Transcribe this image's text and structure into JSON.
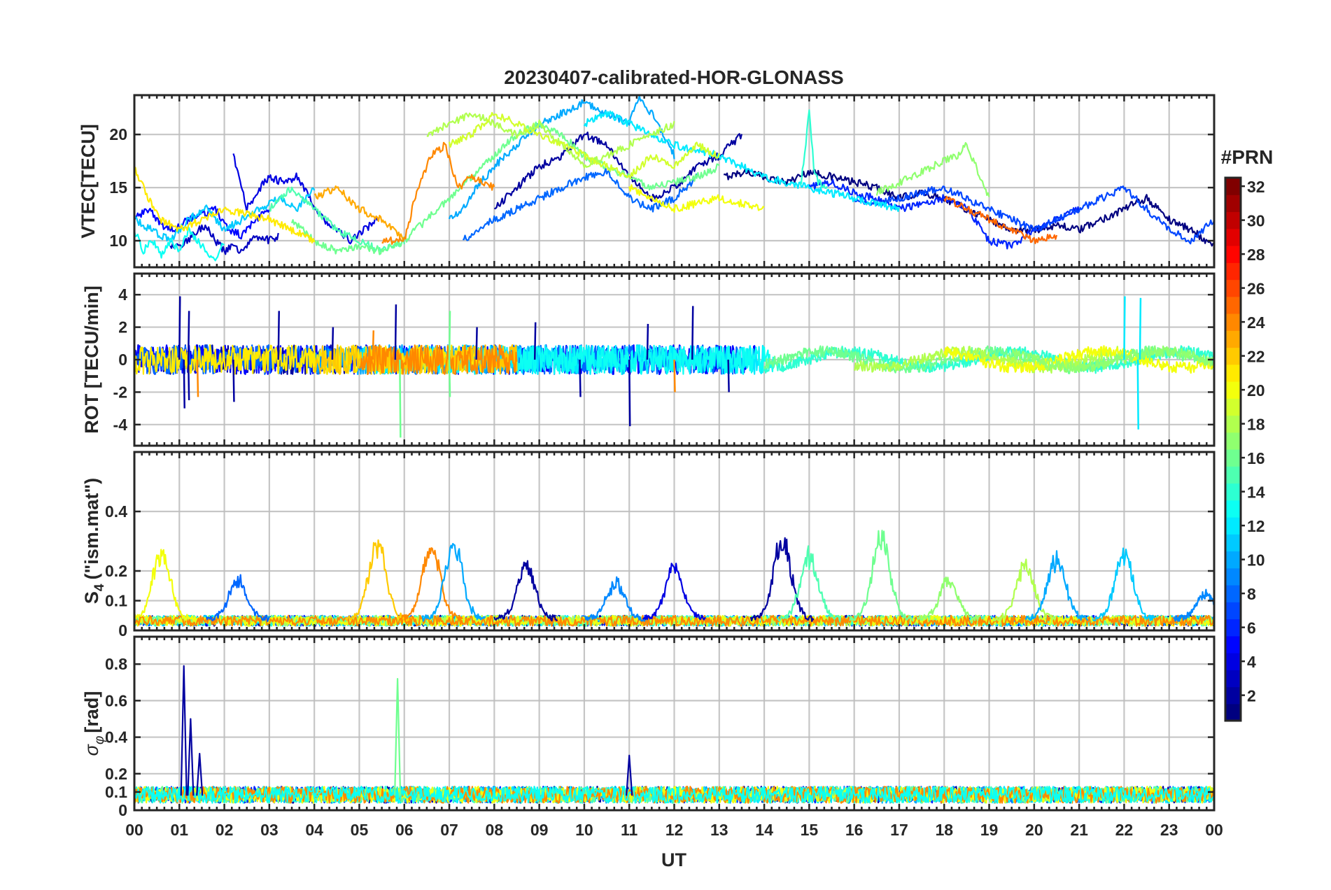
{
  "chart_data": {
    "type": "line",
    "title": "20230407-calibrated-HOR-GLONASS",
    "xlabel": "UT",
    "x_tick_labels": [
      "00",
      "01",
      "02",
      "03",
      "04",
      "05",
      "06",
      "07",
      "08",
      "09",
      "10",
      "11",
      "12",
      "13",
      "14",
      "15",
      "16",
      "17",
      "18",
      "19",
      "20",
      "21",
      "22",
      "23",
      "00"
    ],
    "xlim": [
      0,
      24
    ],
    "grid": true,
    "panels": [
      {
        "name": "vtec",
        "ylabel": "VTEC[TECU]",
        "ylim": [
          7.5,
          23.7
        ],
        "y_ticks": [
          10,
          15,
          20
        ],
        "y_tick_labels": [
          "10",
          "15",
          "20"
        ],
        "series": [
          {
            "prn": 1,
            "x": [
              13.1,
              13.6,
              14,
              14.5,
              15,
              15.5,
              16,
              16.5,
              17,
              17.5,
              18,
              18.5,
              19,
              19.5,
              20,
              20.5,
              21,
              21.5,
              22,
              22.5,
              23,
              23.5,
              24
            ],
            "y": [
              16,
              16.5,
              16,
              15.5,
              16.5,
              16,
              15.5,
              15,
              14,
              14.5,
              14,
              13,
              12,
              11,
              11,
              11.5,
              11,
              12,
              13,
              14,
              12,
              11,
              9.5
            ]
          },
          {
            "prn": 2,
            "x": [
              8,
              8.5,
              9,
              9.5,
              10,
              10.5,
              11,
              11.5,
              12,
              12.5,
              13,
              13.5
            ],
            "y": [
              13,
              15,
              17,
              18,
              20,
              19,
              16,
              14,
              15,
              17,
              18,
              20
            ]
          },
          {
            "prn": 3,
            "x": [
              0.8,
              1,
              1.2,
              1.4,
              1.6,
              1.8,
              2,
              2.2,
              2.4,
              2.6,
              2.8,
              3,
              3.2
            ],
            "y": [
              9.5,
              9.6,
              10,
              11,
              11.5,
              10,
              9,
              9.5,
              9,
              10,
              10.5,
              10,
              10.5
            ]
          },
          {
            "prn": 4,
            "x": [
              2.2,
              2.5,
              2.8,
              3,
              3.3,
              3.6,
              3.9,
              4.2,
              4.5,
              4.8,
              5.1,
              5.4
            ],
            "y": [
              18,
              13,
              15,
              16,
              15.5,
              16,
              14,
              12,
              11,
              10,
              11,
              12
            ]
          },
          {
            "prn": 5,
            "x": [
              0,
              0.3,
              0.6,
              0.9,
              1.2,
              1.5,
              1.8,
              2.1,
              2.4,
              2.7,
              3
            ],
            "y": [
              12,
              13,
              11.5,
              11,
              12,
              12.5,
              13,
              11,
              10.5,
              12,
              13
            ]
          },
          {
            "prn": 6,
            "x": [
              15,
              15.5,
              16,
              16.5,
              17,
              17.5,
              18,
              18.5,
              19,
              19.5,
              20,
              20.5,
              21
            ],
            "y": [
              15,
              15.5,
              14.5,
              14,
              13,
              13.5,
              14,
              13,
              10,
              9.5,
              11,
              12,
              13
            ]
          },
          {
            "prn": 7,
            "x": [
              16,
              16.5,
              17,
              17.5,
              18,
              18.5,
              19,
              19.5,
              20,
              20.5,
              21,
              21.5,
              22,
              22.5,
              23,
              23.5,
              24
            ],
            "y": [
              14,
              13.5,
              14,
              14.5,
              15,
              14,
              13,
              12,
              11,
              12,
              13,
              14,
              15,
              13,
              11,
              10,
              12
            ]
          },
          {
            "prn": 8,
            "x": [
              7.3,
              7.6,
              8,
              8.5,
              9,
              9.5,
              10,
              10.5,
              11,
              11.5,
              12,
              12.5
            ],
            "y": [
              10,
              11,
              12,
              13,
              14,
              15,
              16,
              16.5,
              14,
              13,
              14,
              16
            ]
          },
          {
            "prn": 10,
            "x": [
              7,
              7.3,
              7.6,
              8,
              8.5,
              9,
              9.5,
              10,
              10.5,
              11,
              11.2,
              11.5,
              12
            ],
            "y": [
              12,
              13,
              15,
              17,
              19,
              21,
              22,
              23,
              22,
              21,
              23.5,
              22,
              18
            ]
          },
          {
            "prn": 11,
            "x": [
              0,
              0.4,
              0.8,
              1.2,
              1.6,
              2,
              2.4,
              2.8,
              3.2,
              3.6,
              4
            ],
            "y": [
              12,
              11,
              10,
              12,
              13,
              11,
              12,
              13,
              14,
              13,
              15
            ]
          },
          {
            "prn": 12,
            "x": [
              10,
              10.5,
              11,
              11.5,
              12,
              12.5,
              13,
              13.5,
              14,
              14.5,
              15,
              15.5,
              16,
              16.5,
              17
            ],
            "y": [
              21,
              22,
              21,
              20,
              19,
              18.5,
              18,
              17,
              16,
              15.5,
              15,
              14.5,
              14,
              13.5,
              13
            ]
          },
          {
            "prn": 13,
            "x": [
              0,
              0.2,
              0.4,
              0.6,
              0.8,
              1,
              1.2,
              1.4,
              1.6,
              1.8,
              2
            ],
            "y": [
              11,
              9,
              10,
              8.5,
              10,
              9,
              11,
              10,
              9,
              8,
              10
            ]
          },
          {
            "prn": 14,
            "x": [
              14.8,
              14.9,
              15,
              15.1,
              15.2,
              15.4
            ],
            "y": [
              15,
              18,
              22.5,
              17,
              15.5,
              15
            ]
          },
          {
            "prn": 15,
            "x": [
              3,
              3.5,
              4,
              4.5,
              5,
              5.5,
              6
            ],
            "y": [
              13,
              15,
              13,
              11,
              10,
              9,
              10
            ]
          },
          {
            "prn": 16,
            "x": [
              3.5,
              4,
              4.5,
              5,
              5.5,
              6,
              6.5,
              7,
              7.5,
              8,
              8.5,
              9,
              9.5,
              10,
              10.5,
              11,
              11.5,
              12,
              12.5,
              13
            ],
            "y": [
              12,
              10,
              9,
              9.5,
              9,
              10,
              12,
              14,
              16,
              18,
              20,
              21,
              20,
              18,
              17,
              16,
              15,
              15.5,
              16,
              17
            ]
          },
          {
            "prn": 17,
            "x": [
              16.5,
              17,
              17.5,
              18,
              18.3,
              18.5,
              18.7,
              19
            ],
            "y": [
              14.5,
              15.5,
              16.5,
              17.5,
              18,
              19,
              17,
              14
            ]
          },
          {
            "prn": 18,
            "x": [
              6.5,
              7,
              7.5,
              8,
              8.5,
              9,
              9.5,
              10,
              10.5,
              11,
              11.5,
              12
            ],
            "y": [
              20,
              21,
              22,
              21,
              20,
              21,
              19,
              17,
              18,
              19,
              20,
              21
            ]
          },
          {
            "prn": 19,
            "x": [
              7,
              7.5,
              8,
              8.5,
              9,
              9.5,
              10,
              10.5,
              11,
              11.5,
              12,
              12.5,
              13
            ],
            "y": [
              19,
              20,
              22,
              21,
              20,
              19,
              18,
              17,
              16,
              18,
              17,
              19,
              18
            ]
          },
          {
            "prn": 20,
            "x": [
              11,
              11.5,
              12,
              12.5,
              13,
              13.5,
              14
            ],
            "y": [
              15,
              14,
              13,
              13.5,
              14,
              13.5,
              13
            ]
          },
          {
            "prn": 21,
            "x": [
              0,
              0.3,
              0.6,
              1,
              1.5,
              2,
              2.5,
              3,
              3.5,
              4
            ],
            "y": [
              17,
              14,
              12,
              11,
              12,
              13,
              12.5,
              12,
              11,
              10
            ]
          },
          {
            "prn": 23,
            "x": [
              4,
              4.5,
              5,
              5.5,
              6
            ],
            "y": [
              14,
              15,
              13,
              12,
              10
            ]
          },
          {
            "prn": 24,
            "x": [
              5.5,
              6,
              6.3,
              6.6,
              6.9,
              7.2,
              7.5,
              8
            ],
            "y": [
              10,
              10,
              15,
              18,
              19,
              15,
              16,
              15
            ]
          },
          {
            "prn": 25,
            "x": [
              18,
              18.5,
              19,
              19.5,
              20,
              20.5
            ],
            "y": [
              14,
              13,
              12,
              11,
              10,
              10.5
            ]
          }
        ]
      },
      {
        "name": "rot",
        "ylabel": "ROT [TECU/min]",
        "ylim": [
          -5.3,
          5.3
        ],
        "y_ticks": [
          -4,
          -2,
          0,
          2,
          4
        ],
        "y_tick_labels": [
          "-4",
          "-2",
          "0",
          "2",
          "4"
        ],
        "spikes": [
          {
            "prn": 2,
            "x": [
              1.0,
              1.1,
              1.2,
              1.2
            ],
            "y": [
              3.9,
              -3.0,
              3.0,
              -2.5
            ]
          },
          {
            "prn": 2,
            "x": [
              2.2,
              3.2,
              4.4,
              5.8,
              7.6,
              8.9,
              9.9,
              11.0,
              11.4,
              12.4,
              13.2
            ],
            "y": [
              -2.6,
              3.0,
              2.0,
              3.4,
              2.0,
              2.3,
              -2.3,
              -4.1,
              2.2,
              3.3,
              -2.0
            ]
          },
          {
            "prn": 12,
            "x": [
              22.0,
              22.3,
              22.35
            ],
            "y": [
              3.9,
              -4.3,
              3.8
            ]
          },
          {
            "prn": 16,
            "x": [
              5.9,
              7.0,
              7.0
            ],
            "y": [
              -4.8,
              3.0,
              -2.3
            ]
          },
          {
            "prn": 24,
            "x": [
              1.4,
              5.3,
              12.0
            ],
            "y": [
              -2.3,
              1.8,
              -2.0
            ]
          }
        ]
      },
      {
        "name": "s4",
        "ylabel_main": "S",
        "ylabel_sub": "4",
        "ylabel_rest": "(\"ism.mat\")",
        "ylim": [
          0,
          0.6
        ],
        "y_ticks": [
          0,
          0.1,
          0.2,
          0.4
        ],
        "y_tick_labels": [
          "0",
          "0.1",
          "0.2",
          "0.4"
        ],
        "peaks": [
          {
            "prn": 20,
            "center": 0.6,
            "height": 0.27
          },
          {
            "prn": 8,
            "center": 2.3,
            "height": 0.17
          },
          {
            "prn": 22,
            "center": 5.4,
            "height": 0.3
          },
          {
            "prn": 24,
            "center": 6.6,
            "height": 0.29
          },
          {
            "prn": 10,
            "center": 7.1,
            "height": 0.3
          },
          {
            "prn": 2,
            "center": 8.7,
            "height": 0.22
          },
          {
            "prn": 9,
            "center": 10.7,
            "height": 0.16
          },
          {
            "prn": 4,
            "center": 12.0,
            "height": 0.22
          },
          {
            "prn": 2,
            "center": 14.4,
            "height": 0.32
          },
          {
            "prn": 15,
            "center": 15.0,
            "height": 0.26
          },
          {
            "prn": 16,
            "center": 16.6,
            "height": 0.32
          },
          {
            "prn": 17,
            "center": 18.1,
            "height": 0.17
          },
          {
            "prn": 18,
            "center": 19.8,
            "height": 0.22
          },
          {
            "prn": 10,
            "center": 20.5,
            "height": 0.25
          },
          {
            "prn": 11,
            "center": 22.0,
            "height": 0.26
          },
          {
            "prn": 9,
            "center": 23.8,
            "height": 0.12
          }
        ]
      },
      {
        "name": "sigma-phi",
        "ylabel_main": "σ",
        "ylabel_sub": "φ",
        "ylabel_rest": "[rad]",
        "ylim": [
          0,
          0.95
        ],
        "y_ticks": [
          0,
          0.1,
          0.2,
          0.4,
          0.6,
          0.8
        ],
        "y_tick_labels": [
          "0",
          "0.1",
          "0.2",
          "0.4",
          "0.6",
          "0.8"
        ],
        "spikes": [
          {
            "prn": 2,
            "x": [
              1.1
            ],
            "y": [
              0.79
            ]
          },
          {
            "prn": 2,
            "x": [
              1.25
            ],
            "y": [
              0.5
            ]
          },
          {
            "prn": 2,
            "x": [
              1.45
            ],
            "y": [
              0.31
            ]
          },
          {
            "prn": 16,
            "x": [
              5.85
            ],
            "y": [
              0.72
            ]
          },
          {
            "prn": 2,
            "x": [
              11.0
            ],
            "y": [
              0.3
            ]
          }
        ]
      }
    ],
    "colorbar": {
      "label": "#PRN",
      "range": [
        1,
        32
      ],
      "tick_values": [
        2,
        4,
        6,
        8,
        10,
        12,
        14,
        16,
        18,
        20,
        22,
        24,
        26,
        28,
        30,
        32
      ],
      "tick_labels": [
        "2",
        "4",
        "6",
        "8",
        "10",
        "12",
        "14",
        "16",
        "18",
        "20",
        "22",
        "24",
        "26",
        "28",
        "30",
        "32"
      ],
      "colormap": "jet"
    }
  }
}
